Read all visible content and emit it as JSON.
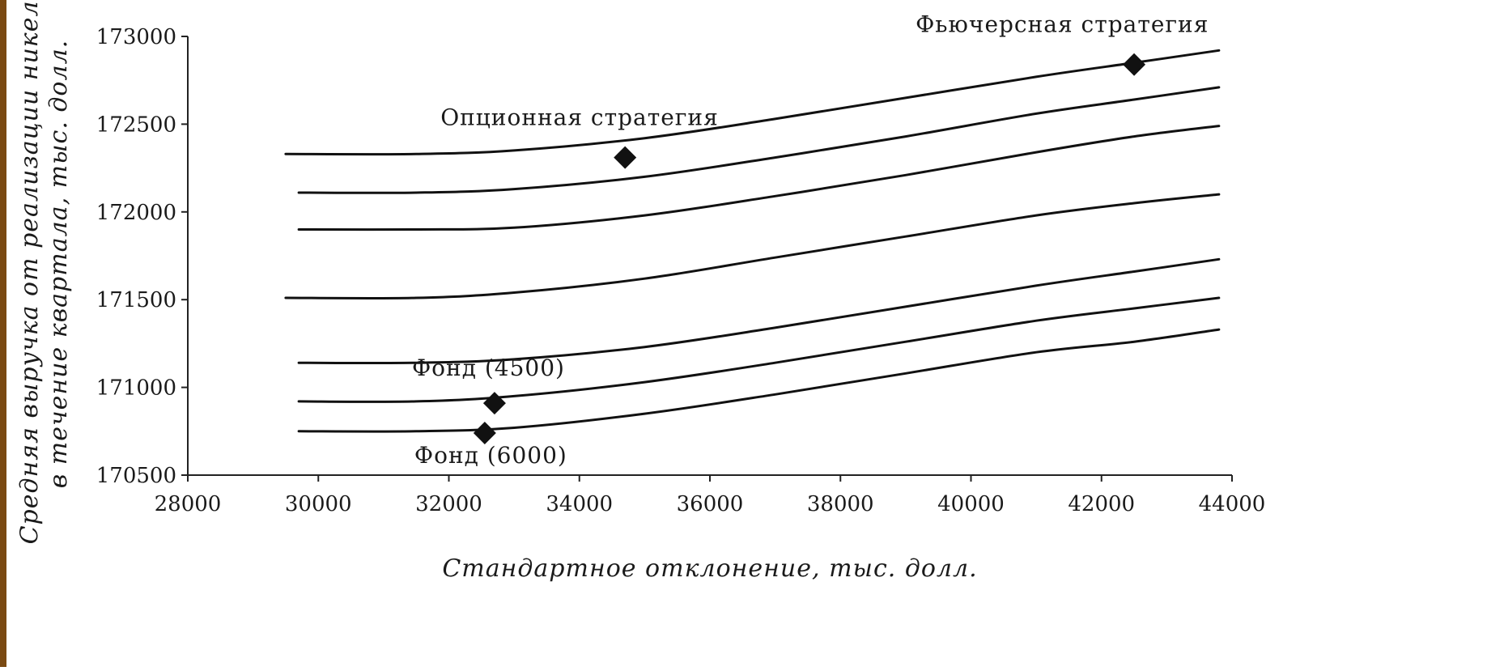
{
  "chart_data": {
    "type": "line",
    "xlabel": "Стандартное отклонение, тыс. долл.",
    "ylabel_line1": "Средняя выручка от реализации никеля",
    "ylabel_line2": "в течение квартала, тыс. долл.",
    "xlim": [
      28000,
      44000
    ],
    "ylim": [
      170500,
      173000
    ],
    "x_ticks": [
      28000,
      30000,
      32000,
      34000,
      36000,
      38000,
      40000,
      42000,
      44000
    ],
    "y_ticks": [
      170500,
      171000,
      171500,
      172000,
      172500,
      173000
    ],
    "grid": false,
    "legend": "none",
    "series": [
      {
        "x": [
          29500,
          31500,
          33000,
          35000,
          37000,
          39000,
          41000,
          42500,
          43800
        ],
        "values": [
          172330,
          172330,
          172350,
          172420,
          172530,
          172650,
          172770,
          172850,
          172920
        ]
      },
      {
        "x": [
          29700,
          31500,
          33000,
          35000,
          37000,
          39000,
          41000,
          42500,
          43800
        ],
        "values": [
          172110,
          172110,
          172130,
          172200,
          172310,
          172430,
          172560,
          172640,
          172710
        ]
      },
      {
        "x": [
          29700,
          31500,
          33000,
          35000,
          37000,
          39000,
          41000,
          42500,
          43800
        ],
        "values": [
          171900,
          171900,
          171910,
          171980,
          172090,
          172210,
          172340,
          172430,
          172490
        ]
      },
      {
        "x": [
          29500,
          31500,
          33000,
          35000,
          37000,
          39000,
          41000,
          42500,
          43800
        ],
        "values": [
          171510,
          171510,
          171540,
          171620,
          171740,
          171860,
          171980,
          172050,
          172100
        ]
      },
      {
        "x": [
          29700,
          31500,
          33000,
          35000,
          37000,
          39000,
          41000,
          42500,
          43800
        ],
        "values": [
          171140,
          171140,
          171160,
          171230,
          171340,
          171460,
          171580,
          171660,
          171730
        ]
      },
      {
        "x": [
          29700,
          31500,
          33000,
          35000,
          37000,
          39000,
          41000,
          42500,
          43800
        ],
        "values": [
          170920,
          170920,
          170950,
          171030,
          171140,
          171260,
          171380,
          171450,
          171510
        ]
      },
      {
        "x": [
          29700,
          31500,
          33000,
          35000,
          37000,
          39000,
          41000,
          42500,
          43800
        ],
        "values": [
          170750,
          170750,
          170770,
          170850,
          170960,
          171080,
          171200,
          171260,
          171330
        ]
      }
    ],
    "points": [
      {
        "label": "Фьючерсная стратегия",
        "x": 42500,
        "y": 172840
      },
      {
        "label": "Опционная стратегия",
        "x": 34700,
        "y": 172310
      },
      {
        "label": "Фонд (4500)",
        "x": 32700,
        "y": 170910
      },
      {
        "label": "Фонд (6000)",
        "x": 32550,
        "y": 170740
      }
    ],
    "colors": {
      "line": "#111111",
      "marker": "#111111",
      "axis": "#222222",
      "left_border": "#7a4a12"
    }
  }
}
